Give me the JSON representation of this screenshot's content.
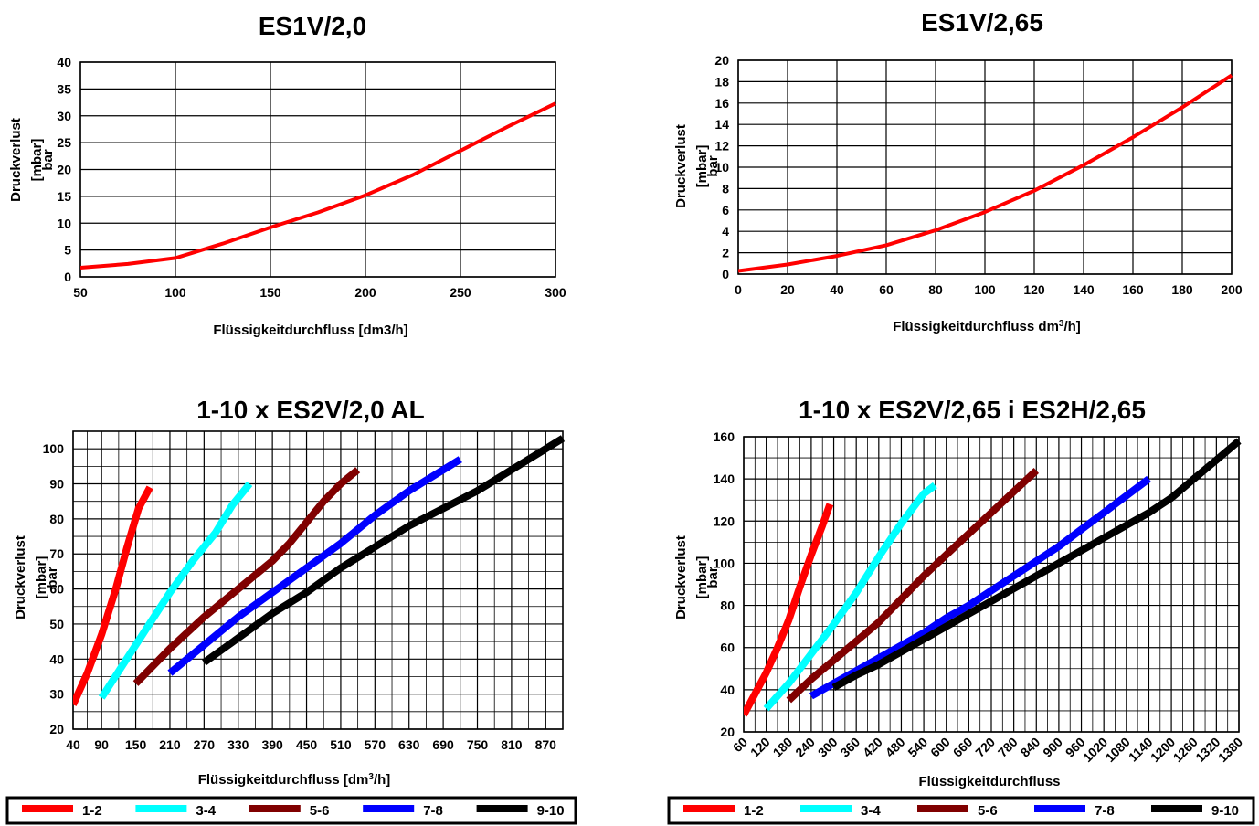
{
  "chart_data": [
    {
      "type": "line",
      "title": "ES1V/2,0",
      "xlabel": "Flüssigkeitdurchfluss [dm3/h]",
      "ylabel": "Druckverlust",
      "ylabel_unit": "[mbar]",
      "ylabel_overlap": "bar",
      "xlim": [
        50,
        300
      ],
      "ylim": [
        0,
        40
      ],
      "x_ticks": [
        "50",
        "100",
        "150",
        "200",
        "250",
        "300"
      ],
      "y_ticks": [
        "0",
        "5",
        "10",
        "15",
        "20",
        "25",
        "30",
        "35",
        "40"
      ],
      "grid": true,
      "series": [
        {
          "color": "#ff0000",
          "x": [
            50,
            75,
            100,
            125,
            150,
            175,
            200,
            225,
            250,
            275,
            300
          ],
          "y": [
            1.7,
            2.4,
            3.5,
            6.2,
            9.2,
            12,
            15.2,
            19,
            23.5,
            28,
            32.3
          ]
        }
      ]
    },
    {
      "type": "line",
      "title": "ES1V/2,65",
      "xlabel": "Flüssigkeitdurchfluss dm",
      "xlabel_sup": "3",
      "xlabel_end": "/h]",
      "ylabel": "Druckverlust",
      "ylabel_unit": "[mbar]",
      "ylabel_overlap": "bar",
      "xlim": [
        0,
        200
      ],
      "ylim": [
        0,
        20
      ],
      "x_ticks": [
        "0",
        "20",
        "40",
        "60",
        "80",
        "100",
        "120",
        "140",
        "160",
        "180",
        "200"
      ],
      "y_ticks": [
        "0",
        "2",
        "4",
        "6",
        "8",
        "10",
        "12",
        "14",
        "16",
        "18",
        "20"
      ],
      "grid": true,
      "series": [
        {
          "color": "#ff0000",
          "x": [
            0,
            20,
            40,
            60,
            80,
            100,
            120,
            140,
            160,
            180,
            200
          ],
          "y": [
            0.3,
            0.9,
            1.7,
            2.7,
            4.1,
            5.8,
            7.8,
            10.2,
            12.8,
            15.6,
            18.6
          ]
        }
      ]
    },
    {
      "type": "line",
      "title": "1-10 x ES2V/2,0 AL",
      "xlabel": "Flüssigkeitdurchfluss [dm",
      "xlabel_sup": "3",
      "xlabel_end": "/h]",
      "ylabel": "Druckverlust",
      "ylabel_unit": "[mbar]",
      "ylabel_overlap": "bar",
      "xlim": [
        40,
        900
      ],
      "ylim": [
        20,
        105
      ],
      "x_ticks": [
        "40",
        "90",
        "150",
        "210",
        "270",
        "330",
        "390",
        "450",
        "510",
        "570",
        "630",
        "690",
        "750",
        "810",
        "870"
      ],
      "y_ticks": [
        "20",
        "30",
        "40",
        "50",
        "60",
        "70",
        "80",
        "90",
        "100"
      ],
      "grid": true,
      "legend": {
        "position": "bottom",
        "entries": [
          "1-2",
          "3-4",
          "5-6",
          "7-8",
          "9-10"
        ]
      },
      "series": [
        {
          "name": "1-2",
          "color": "#ff0000",
          "x": [
            40,
            65,
            90,
            115,
            135,
            155,
            175
          ],
          "y": [
            27,
            36,
            47,
            60,
            72,
            83,
            89
          ]
        },
        {
          "name": "3-4",
          "color": "#00ffff",
          "x": [
            90,
            130,
            170,
            210,
            250,
            290,
            320,
            350
          ],
          "y": [
            29,
            39,
            49,
            59,
            68,
            76,
            84,
            90
          ]
        },
        {
          "name": "5-6",
          "color": "#800000",
          "x": [
            150,
            210,
            270,
            330,
            390,
            420,
            450,
            480,
            510,
            540
          ],
          "y": [
            33,
            43,
            52,
            60,
            68,
            73,
            79,
            85,
            90,
            94
          ]
        },
        {
          "name": "7-8",
          "color": "#0000ff",
          "x": [
            210,
            270,
            330,
            390,
            450,
            510,
            570,
            630,
            690,
            720
          ],
          "y": [
            36,
            44,
            52,
            59,
            66,
            73,
            81,
            88,
            94,
            97
          ]
        },
        {
          "name": "9-10",
          "color": "#000000",
          "x": [
            270,
            330,
            390,
            450,
            510,
            570,
            630,
            690,
            750,
            810,
            870,
            900
          ],
          "y": [
            39,
            46,
            53,
            59,
            66,
            72,
            78,
            83,
            88,
            94,
            100,
            103
          ]
        }
      ]
    },
    {
      "type": "line",
      "title": "1-10 x ES2V/2,65 i ES2H/2,65",
      "xlabel": "Flüssigkeitdurchfluss",
      "ylabel": "Druckverlust",
      "ylabel_unit": "[mbar]",
      "ylabel_overlap": "bar",
      "xlim": [
        60,
        1380
      ],
      "ylim": [
        20,
        160
      ],
      "x_ticks": [
        "60",
        "120",
        "180",
        "240",
        "300",
        "360",
        "420",
        "480",
        "540",
        "600",
        "660",
        "720",
        "780",
        "840",
        "900",
        "960",
        "1020",
        "1080",
        "1140",
        "1200",
        "1260",
        "1320",
        "1380"
      ],
      "y_ticks": [
        "20",
        "40",
        "60",
        "80",
        "100",
        "120",
        "140",
        "160"
      ],
      "grid": true,
      "legend": {
        "position": "bottom",
        "entries": [
          "1-2",
          "3-4",
          "5-6",
          "7-8",
          "9-10"
        ]
      },
      "series": [
        {
          "name": "1-2",
          "color": "#ff0000",
          "x": [
            60,
            90,
            120,
            150,
            180,
            210,
            240,
            270,
            290
          ],
          "y": [
            28,
            38,
            48,
            60,
            73,
            89,
            104,
            118,
            128
          ]
        },
        {
          "name": "3-4",
          "color": "#00ffff",
          "x": [
            120,
            180,
            240,
            300,
            360,
            420,
            480,
            540,
            570
          ],
          "y": [
            31,
            43,
            57,
            71,
            86,
            103,
            119,
            133,
            137
          ]
        },
        {
          "name": "5-6",
          "color": "#800000",
          "x": [
            180,
            240,
            300,
            360,
            420,
            480,
            540,
            600,
            660,
            720,
            780,
            840
          ],
          "y": [
            35,
            45,
            54,
            63,
            72,
            83,
            94,
            104,
            114,
            124,
            134,
            144
          ]
        },
        {
          "name": "7-8",
          "color": "#0000ff",
          "x": [
            240,
            300,
            360,
            420,
            480,
            540,
            600,
            660,
            720,
            780,
            840,
            900,
            960,
            1020,
            1080,
            1140
          ],
          "y": [
            37,
            43,
            49,
            55,
            61,
            67,
            74,
            80,
            87,
            94,
            101,
            108,
            116,
            124,
            132,
            140
          ]
        },
        {
          "name": "9-10",
          "color": "#000000",
          "x": [
            300,
            360,
            420,
            480,
            540,
            600,
            660,
            720,
            780,
            840,
            900,
            960,
            1020,
            1080,
            1140,
            1200,
            1260,
            1320,
            1380
          ],
          "y": [
            41,
            47,
            52,
            58,
            64,
            70,
            76,
            82,
            88,
            94,
            100,
            106,
            112,
            118,
            124,
            131,
            140,
            149,
            158
          ]
        }
      ]
    }
  ]
}
